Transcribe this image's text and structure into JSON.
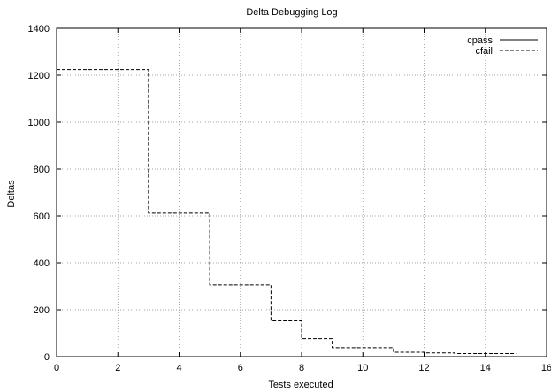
{
  "chart_data": {
    "type": "line",
    "title": "Delta Debugging Log",
    "xlabel": "Tests executed",
    "ylabel": "Deltas",
    "xlim": [
      0,
      16
    ],
    "ylim": [
      0,
      1400
    ],
    "xticks": [
      0,
      2,
      4,
      6,
      8,
      10,
      12,
      14,
      16
    ],
    "yticks": [
      0,
      200,
      400,
      600,
      800,
      1000,
      1200,
      1400
    ],
    "grid": true,
    "legend_position": "top-right",
    "step": true,
    "series": [
      {
        "name": "cpass",
        "line_style": "solid",
        "color": "#000000",
        "x": [
          12,
          15
        ],
        "y": [
          0,
          0
        ]
      },
      {
        "name": "cfail",
        "line_style": "dashed",
        "color": "#000000",
        "x": [
          0,
          3,
          5,
          7,
          8,
          9,
          11,
          12,
          13,
          15
        ],
        "y": [
          1224,
          612,
          306,
          153,
          77,
          38,
          19,
          16,
          13,
          13
        ]
      }
    ]
  }
}
